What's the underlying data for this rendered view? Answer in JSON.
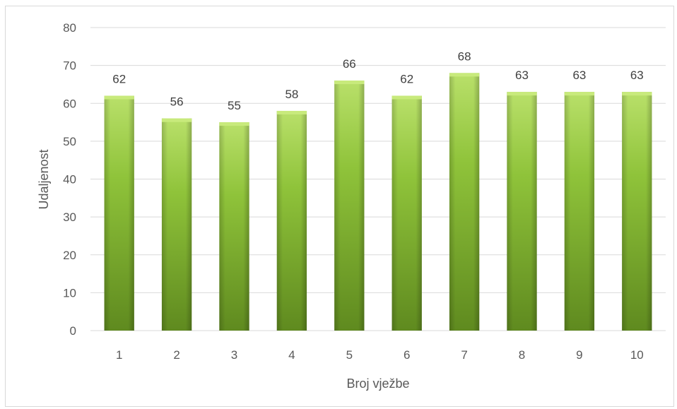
{
  "chart_data": {
    "type": "bar",
    "xlabel": "Broj vježbe",
    "ylabel": "Udaljenost",
    "categories": [
      "1",
      "2",
      "3",
      "4",
      "5",
      "6",
      "7",
      "8",
      "9",
      "10"
    ],
    "values": [
      62,
      56,
      55,
      58,
      66,
      62,
      68,
      63,
      63,
      63
    ],
    "ylim": [
      0,
      80
    ],
    "yticks": [
      0,
      10,
      20,
      30,
      40,
      50,
      60,
      70,
      80
    ],
    "grid": true,
    "legend": "none",
    "colors": {
      "bar": "#92c83e",
      "grid": "#d9d9d9"
    }
  }
}
